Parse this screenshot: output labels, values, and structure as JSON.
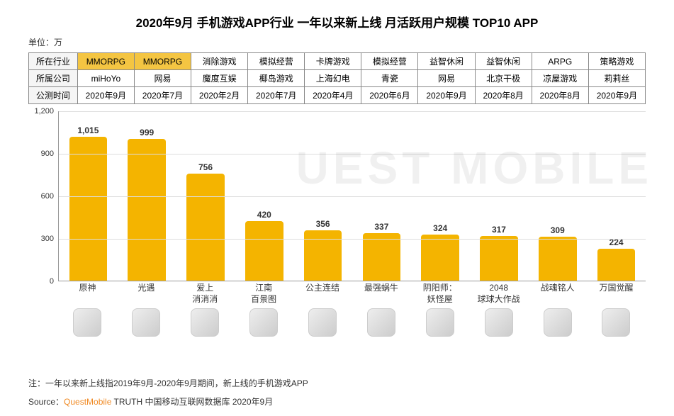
{
  "title": "2020年9月 手机游戏APP行业 一年以来新上线 月活跃用户规模 TOP10 APP",
  "title_fontsize": 17,
  "unit_label": "单位：万",
  "watermark": "UEST MOBILE",
  "table": {
    "row_headers": [
      "所在行业",
      "所属公司",
      "公测时间"
    ],
    "columns": [
      "MMORPG",
      "MMORPG",
      "消除游戏",
      "模拟经营",
      "卡牌游戏",
      "模拟经营",
      "益智休闲",
      "益智休闲",
      "ARPG",
      "策略游戏"
    ],
    "highlight_cols": [
      0,
      1
    ],
    "companies": [
      "miHoYo",
      "网易",
      "魔度互娱",
      "椰岛游戏",
      "上海幻电",
      "青瓷",
      "网易",
      "北京干极",
      "凉屋游戏",
      "莉莉丝"
    ],
    "dates": [
      "2020年9月",
      "2020年7月",
      "2020年2月",
      "2020年7月",
      "2020年4月",
      "2020年6月",
      "2020年9月",
      "2020年8月",
      "2020年8月",
      "2020年9月"
    ]
  },
  "chart": {
    "type": "bar",
    "categories": [
      "原神",
      "光遇",
      "爱上\n消消消",
      "江南\n百景图",
      "公主连结",
      "最强蜗牛",
      "阴阳师：\n妖怪屋",
      "2048\n球球大作战",
      "战魂铭人",
      "万国觉醒"
    ],
    "values": [
      1015,
      999,
      756,
      420,
      356,
      337,
      324,
      317,
      309,
      224
    ],
    "bar_color": "#f4b400",
    "value_fontsize": 12,
    "ylim": [
      0,
      1200
    ],
    "ytick_step": 300,
    "yticks": [
      0,
      300,
      600,
      900,
      1200
    ],
    "grid_color": "#dddddd",
    "axis_color": "#999999",
    "background_color": "#ffffff",
    "bar_width": 0.7,
    "label_fontsize": 12
  },
  "note_prefix": "注：",
  "note_text": "一年以来新上线指2019年9月-2020年9月期间，新上线的手机游戏APP",
  "source_prefix": "Source：",
  "source_brand": "QuestMobile",
  "source_suffix": " TRUTH 中国移动互联网数据库 2020年9月"
}
